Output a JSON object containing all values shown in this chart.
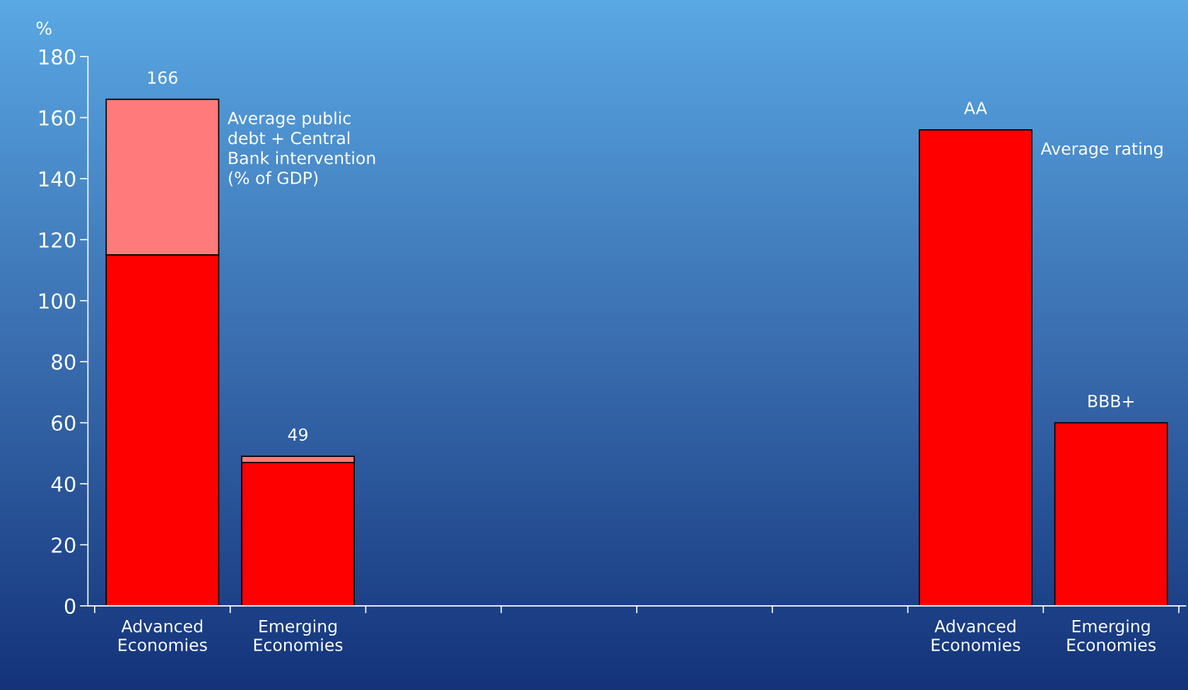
{
  "chart_data": {
    "type": "bar",
    "ylabel": "%",
    "stacked": true,
    "categories": [
      "Advanced\nEconomies",
      "Emerging\nEconomies",
      null,
      null,
      null,
      null,
      "Advanced\nEconomies",
      "Emerging\nEconomies"
    ],
    "series": [
      {
        "color": "#ff0000",
        "values": [
          115,
          47,
          null,
          null,
          null,
          null,
          156,
          60
        ]
      },
      {
        "color": "#ff7a7a",
        "values": [
          51,
          2,
          null,
          null,
          null,
          null,
          null,
          null
        ]
      }
    ],
    "totals": [
      "166",
      "49",
      null,
      null,
      null,
      null,
      "AA",
      "BBB+"
    ],
    "annotations": [
      "Average public\ndebt + Central\nBank intervention\n(% of GDP)",
      "Average rating"
    ],
    "ylim": [
      0,
      180
    ],
    "yticks": [
      0,
      20,
      40,
      60,
      80,
      100,
      120,
      140,
      160,
      180
    ],
    "grid": false,
    "legend": false
  }
}
